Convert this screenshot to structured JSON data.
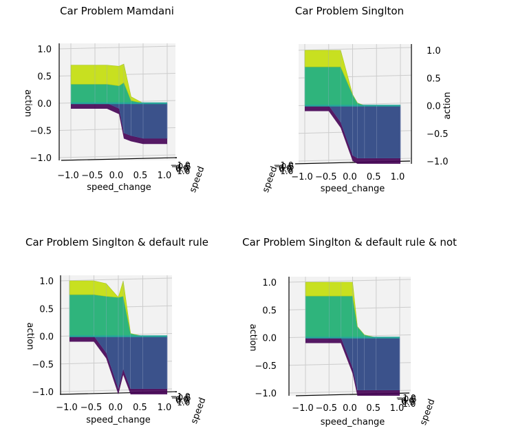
{
  "chart_data": [
    {
      "type": "surface",
      "title": "Car Problem Mamdani",
      "xlabel": "speed_change",
      "ylabel": "speed",
      "zlabel": "action",
      "xlim": [
        -1.0,
        1.0
      ],
      "ylim": [
        -1.0,
        1.0
      ],
      "zlim": [
        -1.0,
        1.0
      ],
      "x_ticks": [
        "−1.0",
        "−0.5",
        "0.0",
        "0.5",
        "1.0"
      ],
      "z_ticks": [
        "1.0",
        "0.5",
        "0.0",
        "−0.5",
        "−1.0"
      ],
      "y_ticks": [
        "−1.0",
        "−0.5",
        "0.0",
        "0.5",
        "1.0"
      ],
      "x": [
        -1.0,
        -0.5,
        -0.25,
        0.0,
        0.1,
        0.25,
        0.5,
        1.0
      ],
      "surface_levels": {
        "top": [
          0.7,
          0.7,
          0.7,
          0.68,
          0.72,
          0.12,
          0.0,
          0.0
        ],
        "upper": [
          0.35,
          0.35,
          0.35,
          0.32,
          0.38,
          0.05,
          0.0,
          0.0
        ],
        "bottom": [
          0.0,
          0.0,
          0.0,
          -0.1,
          -0.55,
          -0.6,
          -0.65,
          -0.65
        ]
      }
    },
    {
      "type": "surface",
      "title": "Car Problem Singlton",
      "xlabel": "speed_change",
      "ylabel": "speed",
      "zlabel": "action",
      "xlim": [
        -1.0,
        1.0
      ],
      "ylim": [
        -1.0,
        1.0
      ],
      "zlim": [
        -1.0,
        1.0
      ],
      "x_ticks": [
        "−1.0",
        "−0.5",
        "0.0",
        "0.5",
        "1.0"
      ],
      "z_ticks": [
        "1.0",
        "0.5",
        "0.0",
        "−0.5",
        "−1.0"
      ],
      "y_ticks": [
        "−1.0",
        "−0.5",
        "0.0",
        "0.5",
        "1.0"
      ],
      "x": [
        -1.0,
        -0.5,
        -0.25,
        0.0,
        0.1,
        0.25,
        0.5,
        1.0
      ],
      "surface_levels": {
        "top": [
          1.0,
          1.0,
          1.0,
          0.2,
          0.05,
          0.0,
          0.0,
          0.0
        ],
        "upper": [
          0.7,
          0.7,
          0.7,
          0.2,
          0.05,
          0.0,
          0.0,
          0.0
        ],
        "bottom": [
          0.0,
          0.0,
          -0.3,
          -0.9,
          -0.95,
          -0.95,
          -0.95,
          -0.95
        ]
      }
    },
    {
      "type": "surface",
      "title": "Car Problem Singlton & default rule",
      "xlabel": "speed_change",
      "ylabel": "speed",
      "zlabel": "action",
      "xlim": [
        -1.0,
        1.0
      ],
      "ylim": [
        -1.0,
        1.0
      ],
      "zlim": [
        -1.0,
        1.0
      ],
      "x_ticks": [
        "−1.0",
        "−0.5",
        "0.0",
        "0.5",
        "1.0"
      ],
      "z_ticks": [
        "1.0",
        "0.5",
        "0.0",
        "−0.5",
        "−1.0"
      ],
      "y_ticks": [
        "−1.0",
        "−0.5",
        "0.0",
        "0.5",
        "1.0"
      ],
      "x": [
        -1.0,
        -0.5,
        -0.25,
        0.0,
        0.1,
        0.25,
        0.5,
        1.0
      ],
      "surface_levels": {
        "top": [
          1.0,
          1.0,
          0.95,
          0.7,
          1.0,
          0.05,
          0.0,
          0.0
        ],
        "upper": [
          0.75,
          0.75,
          0.72,
          0.7,
          0.72,
          0.05,
          0.0,
          0.0
        ],
        "bottom": [
          0.0,
          0.0,
          -0.3,
          -0.95,
          -0.6,
          -0.95,
          -0.95,
          -0.95
        ]
      }
    },
    {
      "type": "surface",
      "title": "Car Problem Singlton & default rule & not",
      "xlabel": "speed_change",
      "ylabel": "speed",
      "zlabel": "action",
      "xlim": [
        -1.0,
        1.0
      ],
      "ylim": [
        -1.0,
        1.0
      ],
      "zlim": [
        -1.0,
        1.0
      ],
      "x_ticks": [
        "−1.0",
        "−0.5",
        "0.0",
        "0.5",
        "1.0"
      ],
      "z_ticks": [
        "1.0",
        "0.5",
        "0.0",
        "−0.5",
        "−1.0"
      ],
      "y_ticks": [
        "−1.0",
        "−0.5",
        "0.0",
        "0.5",
        "1.0"
      ],
      "x": [
        -1.0,
        -0.5,
        -0.25,
        0.0,
        0.1,
        0.25,
        0.5,
        1.0
      ],
      "surface_levels": {
        "top": [
          1.0,
          1.0,
          1.0,
          1.0,
          0.2,
          0.05,
          0.0,
          0.0
        ],
        "upper": [
          0.75,
          0.75,
          0.75,
          0.75,
          0.2,
          0.05,
          0.0,
          0.0
        ],
        "bottom": [
          0.0,
          0.0,
          0.0,
          -0.55,
          -0.95,
          -0.95,
          -0.95,
          -0.95
        ]
      }
    }
  ],
  "colors": {
    "top": "#c8e020",
    "upper": "#2fb47c",
    "flat": "#26a69a",
    "bottom": "#3b528b",
    "floor": "#440154",
    "pane": "#f2f2f2",
    "grid": "#cccccc"
  }
}
